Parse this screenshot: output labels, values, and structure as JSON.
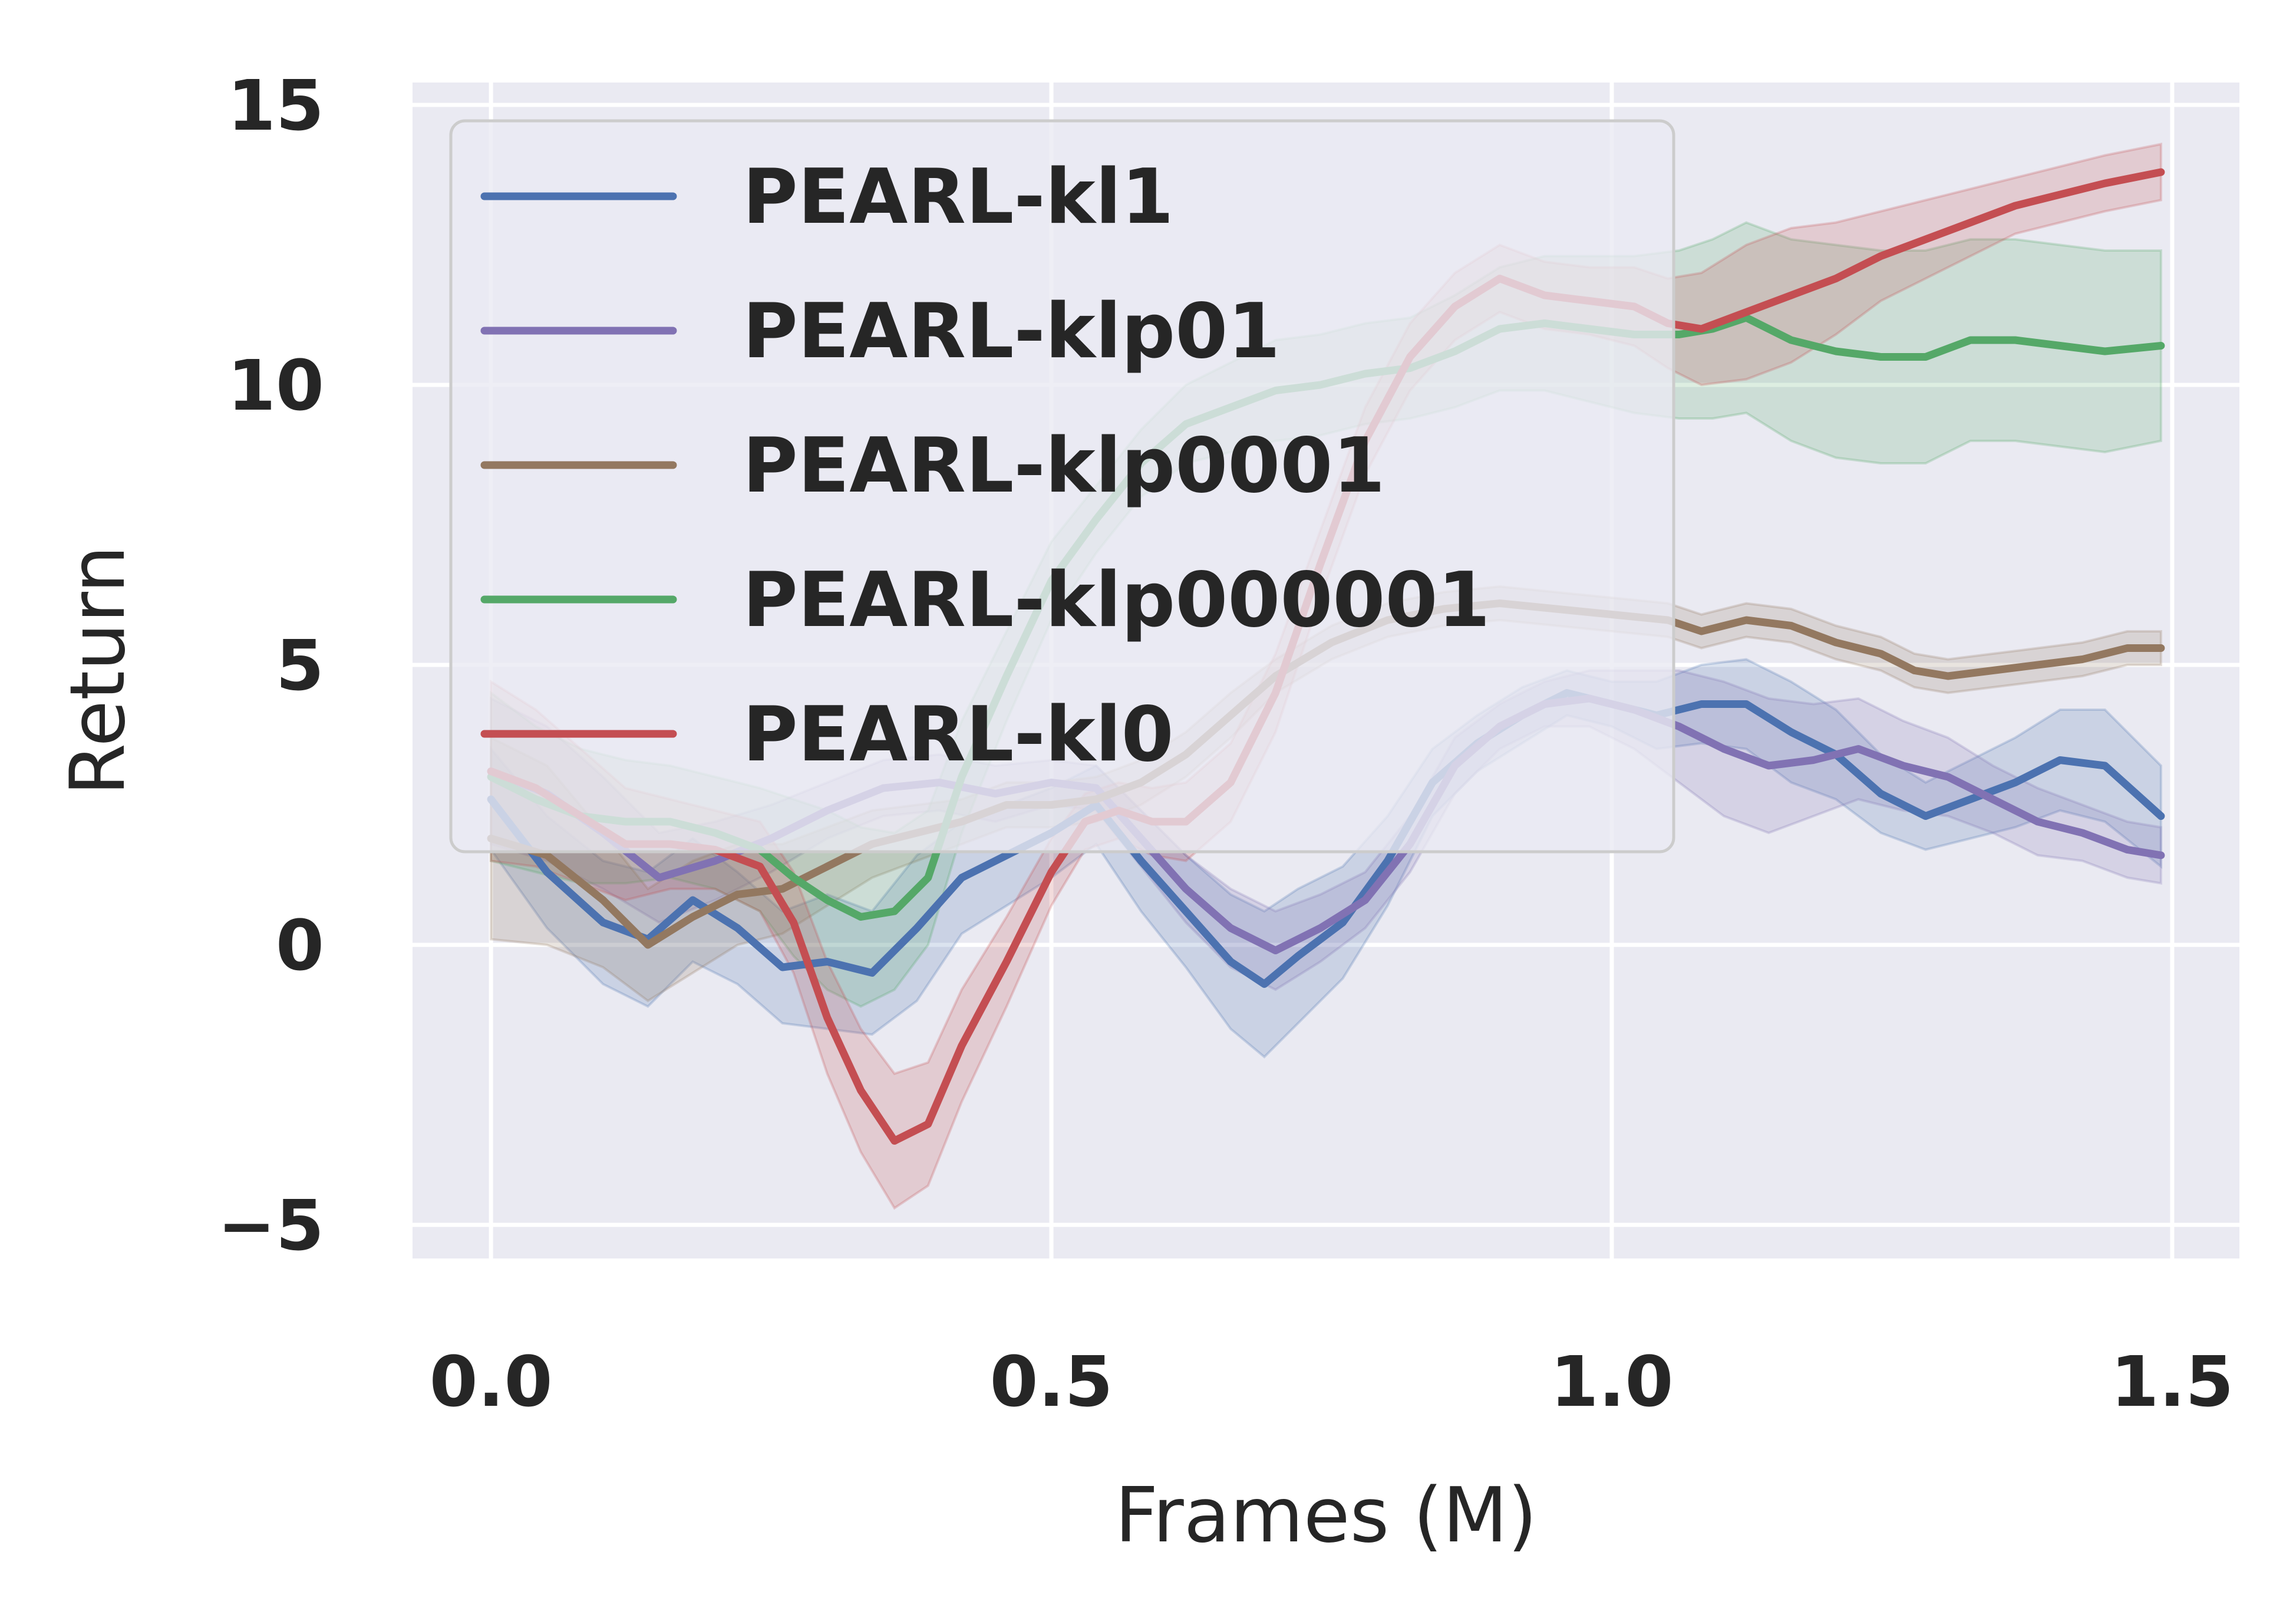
{
  "chart_data": {
    "type": "line",
    "title": "",
    "xlabel": "Frames (M)",
    "ylabel": "Return",
    "xlim": [
      -0.07,
      1.56
    ],
    "ylim": [
      -5.6,
      15.4
    ],
    "xticks": [
      0.0,
      0.5,
      1.0,
      1.5
    ],
    "xtick_labels": [
      "0.0",
      "0.5",
      "1.0",
      "1.5"
    ],
    "yticks": [
      -5,
      0,
      5,
      10,
      15
    ],
    "ytick_labels": [
      "−5",
      "0",
      "5",
      "10",
      "15"
    ],
    "grid": true,
    "legend_position": "upper-left",
    "band_alpha": 0.2,
    "series": [
      {
        "name": "PEARL-kl1",
        "color": "#4c72b0",
        "points": [
          [
            0.0,
            2.6
          ],
          [
            0.05,
            1.3
          ],
          [
            0.1,
            0.4
          ],
          [
            0.14,
            0.1
          ],
          [
            0.18,
            0.8
          ],
          [
            0.22,
            0.3
          ],
          [
            0.26,
            -0.4
          ],
          [
            0.3,
            -0.3
          ],
          [
            0.34,
            -0.5
          ],
          [
            0.38,
            0.3
          ],
          [
            0.42,
            1.2
          ],
          [
            0.46,
            1.6
          ],
          [
            0.5,
            2.0
          ],
          [
            0.54,
            2.5
          ],
          [
            0.58,
            1.5
          ],
          [
            0.62,
            0.6
          ],
          [
            0.66,
            -0.3
          ],
          [
            0.69,
            -0.7
          ],
          [
            0.72,
            -0.2
          ],
          [
            0.76,
            0.4
          ],
          [
            0.8,
            1.5
          ],
          [
            0.84,
            2.9
          ],
          [
            0.88,
            3.6
          ],
          [
            0.92,
            4.1
          ],
          [
            0.96,
            4.5
          ],
          [
            1.0,
            4.3
          ],
          [
            1.04,
            4.1
          ],
          [
            1.08,
            4.3
          ],
          [
            1.12,
            4.3
          ],
          [
            1.16,
            3.8
          ],
          [
            1.2,
            3.4
          ],
          [
            1.24,
            2.7
          ],
          [
            1.28,
            2.3
          ],
          [
            1.32,
            2.6
          ],
          [
            1.36,
            2.9
          ],
          [
            1.4,
            3.3
          ],
          [
            1.44,
            3.2
          ],
          [
            1.49,
            2.3
          ]
        ],
        "band": [
          0.9,
          1.0,
          1.1,
          1.2,
          1.1,
          1.0,
          1.0,
          1.2,
          1.1,
          1.3,
          1.0,
          0.9,
          0.8,
          0.7,
          0.9,
          1.0,
          1.2,
          1.3,
          1.2,
          1.0,
          0.8,
          0.6,
          0.5,
          0.5,
          0.4,
          0.4,
          0.6,
          0.7,
          0.8,
          0.9,
          0.8,
          0.7,
          0.6,
          0.7,
          0.8,
          0.9,
          1.0,
          0.9
        ]
      },
      {
        "name": "PEARL-klp01",
        "color": "#8172b3",
        "points": [
          [
            0.0,
            3.1
          ],
          [
            0.05,
            2.7
          ],
          [
            0.1,
            2.0
          ],
          [
            0.15,
            1.2
          ],
          [
            0.2,
            1.5
          ],
          [
            0.25,
            1.9
          ],
          [
            0.3,
            2.4
          ],
          [
            0.35,
            2.8
          ],
          [
            0.4,
            2.9
          ],
          [
            0.45,
            2.7
          ],
          [
            0.5,
            2.9
          ],
          [
            0.54,
            2.8
          ],
          [
            0.58,
            1.9
          ],
          [
            0.62,
            1.0
          ],
          [
            0.66,
            0.3
          ],
          [
            0.7,
            -0.1
          ],
          [
            0.74,
            0.3
          ],
          [
            0.78,
            0.8
          ],
          [
            0.82,
            1.8
          ],
          [
            0.86,
            3.2
          ],
          [
            0.9,
            3.9
          ],
          [
            0.94,
            4.3
          ],
          [
            0.98,
            4.4
          ],
          [
            1.02,
            4.2
          ],
          [
            1.06,
            3.9
          ],
          [
            1.1,
            3.5
          ],
          [
            1.14,
            3.2
          ],
          [
            1.18,
            3.3
          ],
          [
            1.22,
            3.5
          ],
          [
            1.26,
            3.2
          ],
          [
            1.3,
            3.0
          ],
          [
            1.34,
            2.6
          ],
          [
            1.38,
            2.2
          ],
          [
            1.42,
            2.0
          ],
          [
            1.46,
            1.7
          ],
          [
            1.49,
            1.6
          ]
        ],
        "band": [
          1.3,
          1.2,
          1.0,
          0.8,
          0.7,
          0.6,
          0.5,
          0.5,
          0.5,
          0.5,
          0.4,
          0.4,
          0.5,
          0.6,
          0.7,
          0.7,
          0.6,
          0.5,
          0.5,
          0.5,
          0.4,
          0.4,
          0.5,
          0.7,
          1.0,
          1.2,
          1.2,
          1.0,
          0.9,
          0.8,
          0.7,
          0.6,
          0.6,
          0.5,
          0.5,
          0.5
        ]
      },
      {
        "name": "PEARL-klp0001",
        "color": "#937860",
        "points": [
          [
            0.0,
            1.9
          ],
          [
            0.05,
            1.6
          ],
          [
            0.1,
            0.8
          ],
          [
            0.14,
            0.0
          ],
          [
            0.18,
            0.5
          ],
          [
            0.22,
            0.9
          ],
          [
            0.26,
            1.0
          ],
          [
            0.3,
            1.4
          ],
          [
            0.34,
            1.8
          ],
          [
            0.38,
            2.0
          ],
          [
            0.42,
            2.2
          ],
          [
            0.46,
            2.5
          ],
          [
            0.5,
            2.5
          ],
          [
            0.54,
            2.6
          ],
          [
            0.58,
            2.9
          ],
          [
            0.62,
            3.4
          ],
          [
            0.66,
            4.1
          ],
          [
            0.7,
            4.8
          ],
          [
            0.75,
            5.4
          ],
          [
            0.8,
            5.8
          ],
          [
            0.85,
            6.0
          ],
          [
            0.9,
            6.1
          ],
          [
            0.95,
            6.0
          ],
          [
            1.0,
            5.9
          ],
          [
            1.05,
            5.8
          ],
          [
            1.08,
            5.6
          ],
          [
            1.12,
            5.8
          ],
          [
            1.16,
            5.7
          ],
          [
            1.2,
            5.4
          ],
          [
            1.24,
            5.2
          ],
          [
            1.27,
            4.9
          ],
          [
            1.3,
            4.8
          ],
          [
            1.34,
            4.9
          ],
          [
            1.38,
            5.0
          ],
          [
            1.42,
            5.1
          ],
          [
            1.46,
            5.3
          ],
          [
            1.49,
            5.3
          ]
        ],
        "band": [
          1.8,
          1.6,
          1.2,
          1.0,
          1.0,
          0.9,
          0.8,
          0.7,
          0.6,
          0.5,
          0.4,
          0.4,
          0.4,
          0.4,
          0.4,
          0.4,
          0.4,
          0.3,
          0.3,
          0.3,
          0.3,
          0.3,
          0.3,
          0.3,
          0.3,
          0.3,
          0.3,
          0.3,
          0.3,
          0.3,
          0.3,
          0.3,
          0.3,
          0.3,
          0.3,
          0.3,
          0.3
        ]
      },
      {
        "name": "PEARL-klp000001",
        "color": "#55a868",
        "points": [
          [
            0.0,
            3.0
          ],
          [
            0.04,
            2.6
          ],
          [
            0.08,
            2.3
          ],
          [
            0.12,
            2.2
          ],
          [
            0.16,
            2.2
          ],
          [
            0.2,
            2.0
          ],
          [
            0.24,
            1.7
          ],
          [
            0.27,
            1.2
          ],
          [
            0.3,
            0.8
          ],
          [
            0.33,
            0.5
          ],
          [
            0.36,
            0.6
          ],
          [
            0.39,
            1.2
          ],
          [
            0.42,
            3.0
          ],
          [
            0.46,
            4.8
          ],
          [
            0.5,
            6.5
          ],
          [
            0.54,
            7.6
          ],
          [
            0.58,
            8.6
          ],
          [
            0.62,
            9.3
          ],
          [
            0.66,
            9.6
          ],
          [
            0.7,
            9.9
          ],
          [
            0.74,
            10.0
          ],
          [
            0.78,
            10.2
          ],
          [
            0.82,
            10.3
          ],
          [
            0.86,
            10.6
          ],
          [
            0.9,
            11.0
          ],
          [
            0.94,
            11.1
          ],
          [
            0.98,
            11.0
          ],
          [
            1.02,
            10.9
          ],
          [
            1.06,
            10.9
          ],
          [
            1.09,
            11.0
          ],
          [
            1.12,
            11.2
          ],
          [
            1.16,
            10.8
          ],
          [
            1.2,
            10.6
          ],
          [
            1.24,
            10.5
          ],
          [
            1.28,
            10.5
          ],
          [
            1.32,
            10.8
          ],
          [
            1.36,
            10.8
          ],
          [
            1.4,
            10.7
          ],
          [
            1.44,
            10.6
          ],
          [
            1.49,
            10.7
          ]
        ],
        "band": [
          1.5,
          1.3,
          1.2,
          1.1,
          1.0,
          1.0,
          1.1,
          1.4,
          1.6,
          1.6,
          1.4,
          1.2,
          1.0,
          0.8,
          0.7,
          0.6,
          0.6,
          0.7,
          0.8,
          0.9,
          0.9,
          0.9,
          0.9,
          1.0,
          1.1,
          1.2,
          1.3,
          1.4,
          1.5,
          1.6,
          1.7,
          1.8,
          1.9,
          1.9,
          1.9,
          1.8,
          1.8,
          1.8,
          1.8,
          1.7
        ]
      },
      {
        "name": "PEARL-kl0",
        "color": "#c44e52",
        "points": [
          [
            0.0,
            3.1
          ],
          [
            0.04,
            2.8
          ],
          [
            0.08,
            2.3
          ],
          [
            0.12,
            1.8
          ],
          [
            0.16,
            1.8
          ],
          [
            0.2,
            1.7
          ],
          [
            0.24,
            1.4
          ],
          [
            0.27,
            0.4
          ],
          [
            0.3,
            -1.3
          ],
          [
            0.33,
            -2.6
          ],
          [
            0.36,
            -3.5
          ],
          [
            0.39,
            -3.2
          ],
          [
            0.42,
            -1.8
          ],
          [
            0.46,
            -0.3
          ],
          [
            0.5,
            1.3
          ],
          [
            0.53,
            2.2
          ],
          [
            0.56,
            2.4
          ],
          [
            0.59,
            2.2
          ],
          [
            0.62,
            2.2
          ],
          [
            0.66,
            2.9
          ],
          [
            0.7,
            4.5
          ],
          [
            0.74,
            6.8
          ],
          [
            0.78,
            9.0
          ],
          [
            0.82,
            10.5
          ],
          [
            0.86,
            11.4
          ],
          [
            0.9,
            11.9
          ],
          [
            0.94,
            11.6
          ],
          [
            0.98,
            11.5
          ],
          [
            1.02,
            11.4
          ],
          [
            1.05,
            11.1
          ],
          [
            1.08,
            11.0
          ],
          [
            1.12,
            11.3
          ],
          [
            1.16,
            11.6
          ],
          [
            1.2,
            11.9
          ],
          [
            1.24,
            12.3
          ],
          [
            1.28,
            12.6
          ],
          [
            1.32,
            12.9
          ],
          [
            1.36,
            13.2
          ],
          [
            1.4,
            13.4
          ],
          [
            1.44,
            13.6
          ],
          [
            1.49,
            13.8
          ]
        ],
        "band": [
          1.6,
          1.4,
          1.2,
          1.0,
          0.8,
          0.7,
          0.8,
          0.9,
          1.0,
          1.1,
          1.2,
          1.1,
          1.0,
          0.8,
          0.6,
          0.5,
          0.5,
          0.6,
          0.7,
          0.7,
          0.7,
          0.6,
          0.6,
          0.6,
          0.6,
          0.6,
          0.6,
          0.6,
          0.7,
          0.8,
          1.0,
          1.2,
          1.2,
          1.0,
          0.8,
          0.7,
          0.6,
          0.5,
          0.5,
          0.5,
          0.5
        ]
      }
    ]
  }
}
